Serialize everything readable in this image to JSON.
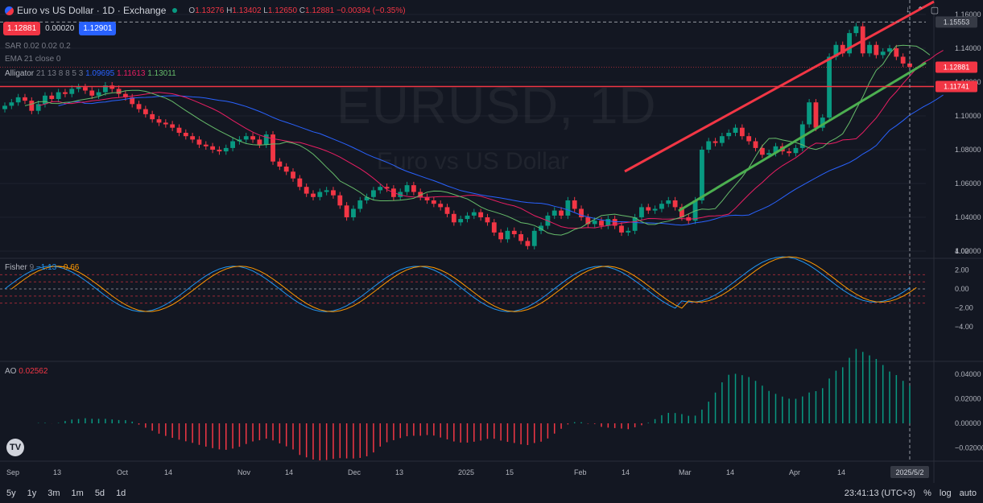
{
  "header": {
    "symbol_title": "Euro vs US Dollar · 1D · Exchange",
    "o_label": "O",
    "o_value": "1.13276",
    "h_label": "H",
    "h_value": "1.13402",
    "l_label": "L",
    "l_value": "1.12650",
    "c_label": "C",
    "c_value": "1.12881",
    "change": "−0.00394 (−0.35%)"
  },
  "trade": {
    "sell": "1.12881",
    "spread": "0.00020",
    "buy": "1.12901"
  },
  "indicators": {
    "sar": "SAR 0.02 0.02 0.2",
    "ema": "EMA 21 close 0",
    "alligator_name": "Alligator",
    "alligator_params": "21 13 8 8 5 3",
    "alligator_v1": "1.09695",
    "alligator_v2": "1.11613",
    "alligator_v3": "1.13011",
    "fisher_name": "Fisher",
    "fisher_param": "9",
    "fisher_v1": "−1.13",
    "fisher_v2": "−0.66",
    "ao_name": "AO",
    "ao_value": "0.02562"
  },
  "watermark": {
    "symbol": "EURUSD, 1D",
    "description": "Euro vs US Dollar"
  },
  "price_axis": {
    "ticks": [
      "1.16000",
      "1.14000",
      "1.12000",
      "1.10000",
      "1.08000",
      "1.06000",
      "1.04000",
      "1.02000"
    ],
    "tick_values": [
      1.16,
      1.14,
      1.12,
      1.1,
      1.08,
      1.06,
      1.04,
      1.02
    ],
    "crosshair_label": "1.15553",
    "crosshair_value": 1.15553,
    "current_label": "1.12881",
    "current_value": 1.12881,
    "level_label": "1.11741",
    "level_value": 1.11741
  },
  "fisher_axis": {
    "ticks": [
      "4.00",
      "2.00",
      "0.00",
      "−2.00",
      "−4.00"
    ],
    "tick_values": [
      4,
      2,
      0,
      -2,
      -4
    ]
  },
  "ao_axis": {
    "ticks": [
      "0.04000",
      "0.02000",
      "0.00000",
      "−0.02000"
    ],
    "tick_values": [
      0.04,
      0.02,
      0,
      -0.02
    ]
  },
  "time_axis": {
    "labels": [
      "Sep",
      "13",
      "Oct",
      "14",
      "Nov",
      "14",
      "Dec",
      "13",
      "2025",
      "15",
      "Feb",
      "14",
      "Mar",
      "14",
      "Apr",
      "14"
    ],
    "crosshair_date": "2025/5/2"
  },
  "bottom_bar": {
    "ranges": [
      "5y",
      "1y",
      "3m",
      "1m",
      "5d",
      "1d"
    ],
    "clock": "23:41:13 (UTC+3)",
    "percent": "%",
    "log": "log",
    "auto": "auto"
  },
  "colors": {
    "up": "#089981",
    "down": "#f23645",
    "jaw": "#2962ff",
    "teeth": "#e91e63",
    "lips": "#66bb6a",
    "fisher1": "#2196f3",
    "fisher2": "#ff9800",
    "trend_red": "#f23645",
    "trend_green": "#4caf50"
  },
  "chart_data": {
    "type": "candlestick",
    "closes": [
      1.106,
      1.108,
      1.111,
      1.109,
      1.103,
      1.107,
      1.112,
      1.11,
      1.114,
      1.113,
      1.116,
      1.117,
      1.115,
      1.112,
      1.114,
      1.118,
      1.116,
      1.113,
      1.111,
      1.107,
      1.104,
      1.101,
      1.098,
      1.096,
      1.095,
      1.093,
      1.09,
      1.088,
      1.086,
      1.083,
      1.082,
      1.08,
      1.079,
      1.081,
      1.085,
      1.086,
      1.088,
      1.086,
      1.083,
      1.089,
      1.073,
      1.07,
      1.067,
      1.063,
      1.058,
      1.054,
      1.052,
      1.055,
      1.056,
      1.053,
      1.047,
      1.04,
      1.045,
      1.05,
      1.052,
      1.056,
      1.058,
      1.057,
      1.052,
      1.055,
      1.059,
      1.055,
      1.052,
      1.05,
      1.048,
      1.046,
      1.042,
      1.037,
      1.039,
      1.041,
      1.043,
      1.04,
      1.037,
      1.031,
      1.027,
      1.032,
      1.03,
      1.026,
      1.023,
      1.032,
      1.035,
      1.041,
      1.044,
      1.041,
      1.05,
      1.045,
      1.04,
      1.036,
      1.038,
      1.035,
      1.039,
      1.035,
      1.031,
      1.032,
      1.04,
      1.046,
      1.044,
      1.045,
      1.048,
      1.05,
      1.046,
      1.04,
      1.038,
      1.05,
      1.08,
      1.085,
      1.084,
      1.088,
      1.09,
      1.093,
      1.088,
      1.085,
      1.081,
      1.077,
      1.078,
      1.082,
      1.079,
      1.078,
      1.081,
      1.095,
      1.108,
      1.093,
      1.099,
      1.135,
      1.142,
      1.137,
      1.149,
      1.153,
      1.137,
      1.142,
      1.136,
      1.138,
      1.14,
      1.135,
      1.131,
      1.129
    ]
  }
}
